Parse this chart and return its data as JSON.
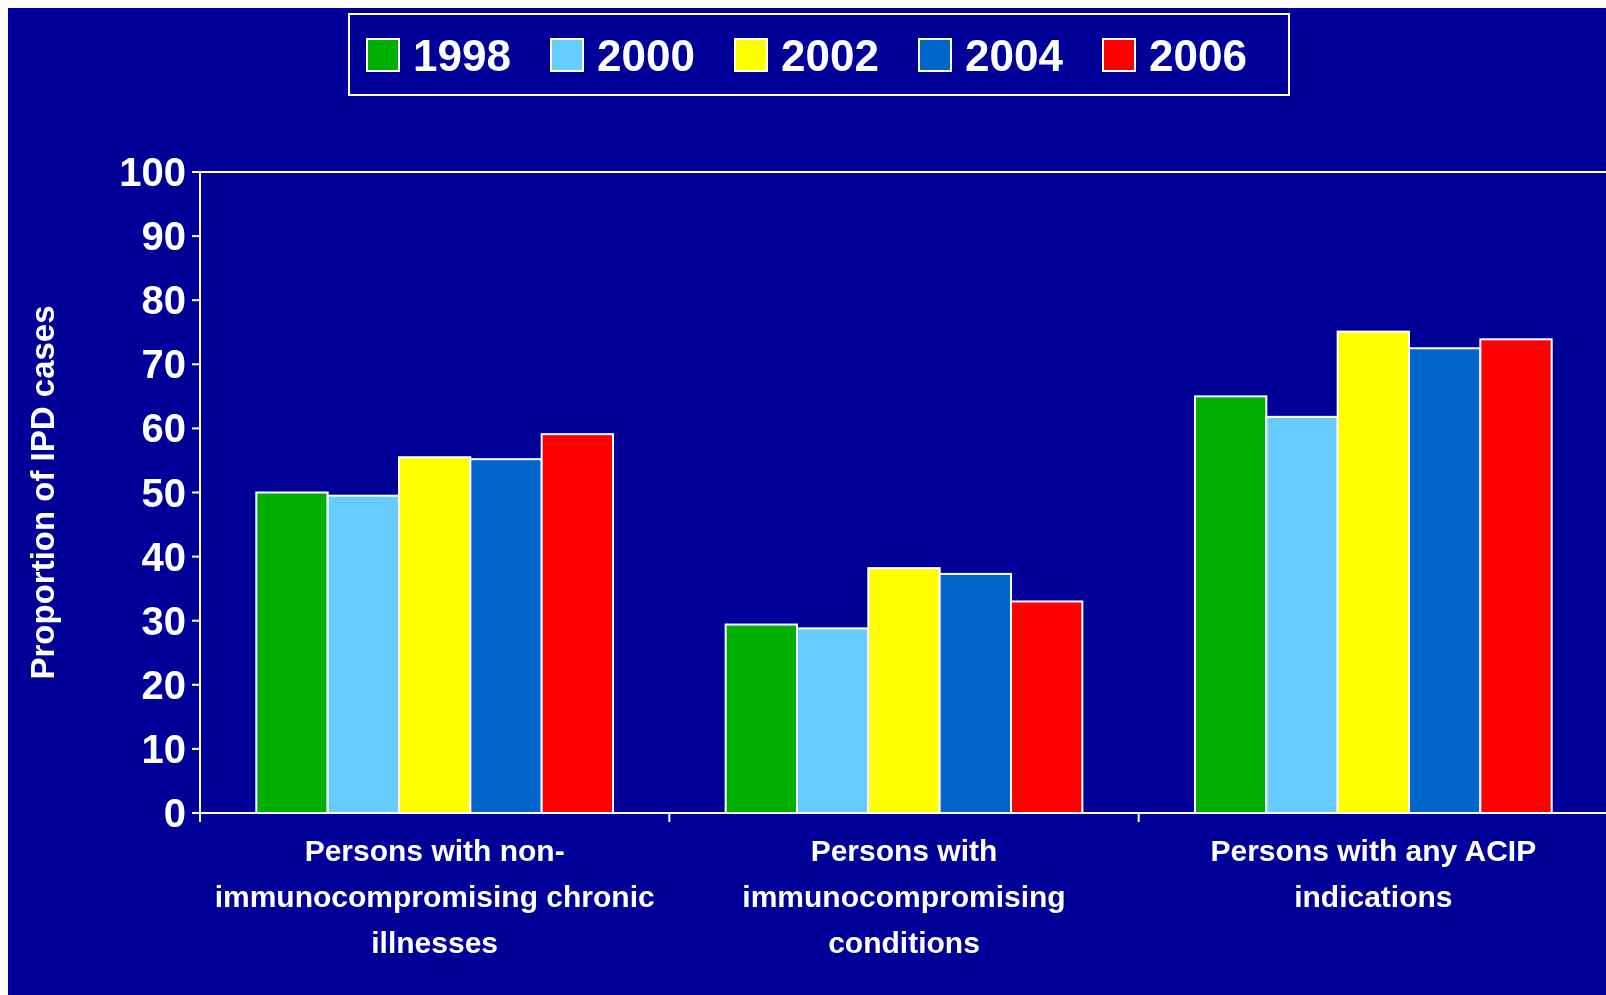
{
  "chart_data": {
    "type": "bar",
    "ylabel": "Proportion of IPD cases",
    "categories": [
      "Persons with non-immunocompromising chronic illnesses",
      "Persons with immunocompromising conditions",
      "Persons with any ACIP indications"
    ],
    "series": [
      {
        "name": "1998",
        "color": "#00b000",
        "values": [
          50,
          29.4,
          65
        ]
      },
      {
        "name": "2000",
        "color": "#66ccff",
        "values": [
          49.5,
          28.8,
          61.8
        ]
      },
      {
        "name": "2002",
        "color": "#ffff00",
        "values": [
          55.5,
          38.2,
          75.1
        ]
      },
      {
        "name": "2004",
        "color": "#0066cc",
        "values": [
          55.2,
          37.3,
          72.5
        ]
      },
      {
        "name": "2006",
        "color": "#ff0000",
        "values": [
          59.1,
          33,
          73.9
        ]
      }
    ],
    "ylim": [
      0,
      100
    ],
    "yticks": [
      0,
      10,
      20,
      30,
      40,
      50,
      60,
      70,
      80,
      90,
      100
    ],
    "legend": "top",
    "grid": false
  }
}
